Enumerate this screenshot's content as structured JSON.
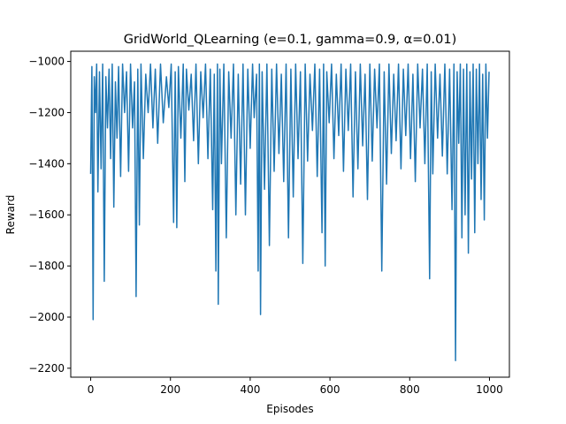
{
  "chart_data": {
    "type": "line",
    "title": "GridWorld_QLearning (e=0.1, gamma=0.9, α=0.01)",
    "xlabel": "Episodes",
    "ylabel": "Reward",
    "xlim": [
      -50,
      1050
    ],
    "ylim": [
      -2235,
      -960
    ],
    "xticks": [
      0,
      200,
      400,
      600,
      800,
      1000
    ],
    "yticks": [
      -2200,
      -2000,
      -1800,
      -1600,
      -1400,
      -1200,
      -1000
    ],
    "grid": false,
    "legend": "none",
    "colors": {
      "series": "#1f77b4",
      "axes": "#000000",
      "background": "#ffffff"
    },
    "series": [
      {
        "points": [
          [
            0,
            -1440
          ],
          [
            3,
            -1020
          ],
          [
            6,
            -2010
          ],
          [
            9,
            -1060
          ],
          [
            12,
            -1200
          ],
          [
            15,
            -1010
          ],
          [
            18,
            -1510
          ],
          [
            22,
            -1040
          ],
          [
            26,
            -1420
          ],
          [
            30,
            -1010
          ],
          [
            34,
            -1860
          ],
          [
            38,
            -1060
          ],
          [
            42,
            -1260
          ],
          [
            46,
            -1030
          ],
          [
            50,
            -1380
          ],
          [
            54,
            -1010
          ],
          [
            58,
            -1570
          ],
          [
            62,
            -1080
          ],
          [
            66,
            -1300
          ],
          [
            70,
            -1020
          ],
          [
            75,
            -1450
          ],
          [
            80,
            -1010
          ],
          [
            85,
            -1200
          ],
          [
            90,
            -1040
          ],
          [
            95,
            -1430
          ],
          [
            100,
            -1010
          ],
          [
            105,
            -1260
          ],
          [
            110,
            -1080
          ],
          [
            114,
            -1920
          ],
          [
            118,
            -1030
          ],
          [
            122,
            -1640
          ],
          [
            126,
            -1010
          ],
          [
            132,
            -1380
          ],
          [
            138,
            -1050
          ],
          [
            144,
            -1200
          ],
          [
            150,
            -1010
          ],
          [
            156,
            -1260
          ],
          [
            162,
            -1030
          ],
          [
            168,
            -1320
          ],
          [
            175,
            -1010
          ],
          [
            182,
            -1240
          ],
          [
            190,
            -1060
          ],
          [
            196,
            -1180
          ],
          [
            202,
            -1010
          ],
          [
            208,
            -1630
          ],
          [
            212,
            -1040
          ],
          [
            216,
            -1650
          ],
          [
            220,
            -1020
          ],
          [
            226,
            -1300
          ],
          [
            232,
            -1010
          ],
          [
            236,
            -1470
          ],
          [
            240,
            -1030
          ],
          [
            246,
            -1190
          ],
          [
            252,
            -1050
          ],
          [
            258,
            -1310
          ],
          [
            264,
            -1010
          ],
          [
            270,
            -1400
          ],
          [
            276,
            -1040
          ],
          [
            282,
            -1220
          ],
          [
            288,
            -1010
          ],
          [
            294,
            -1380
          ],
          [
            300,
            -1030
          ],
          [
            306,
            -1580
          ],
          [
            310,
            -1050
          ],
          [
            314,
            -1820
          ],
          [
            318,
            -1010
          ],
          [
            320,
            -1950
          ],
          [
            324,
            -1030
          ],
          [
            328,
            -1400
          ],
          [
            334,
            -1010
          ],
          [
            340,
            -1690
          ],
          [
            346,
            -1040
          ],
          [
            352,
            -1300
          ],
          [
            358,
            -1010
          ],
          [
            364,
            -1600
          ],
          [
            370,
            -1050
          ],
          [
            376,
            -1480
          ],
          [
            382,
            -1010
          ],
          [
            388,
            -1600
          ],
          [
            394,
            -1030
          ],
          [
            400,
            -1340
          ],
          [
            406,
            -1010
          ],
          [
            410,
            -1220
          ],
          [
            416,
            -1050
          ],
          [
            420,
            -1820
          ],
          [
            423,
            -1010
          ],
          [
            426,
            -1990
          ],
          [
            430,
            -1040
          ],
          [
            436,
            -1500
          ],
          [
            442,
            -1010
          ],
          [
            448,
            -1720
          ],
          [
            454,
            -1030
          ],
          [
            460,
            -1430
          ],
          [
            466,
            -1010
          ],
          [
            472,
            -1360
          ],
          [
            478,
            -1050
          ],
          [
            484,
            -1470
          ],
          [
            490,
            -1010
          ],
          [
            496,
            -1690
          ],
          [
            502,
            -1030
          ],
          [
            508,
            -1530
          ],
          [
            514,
            -1010
          ],
          [
            520,
            -1380
          ],
          [
            526,
            -1040
          ],
          [
            532,
            -1790
          ],
          [
            538,
            -1010
          ],
          [
            544,
            -1390
          ],
          [
            550,
            -1050
          ],
          [
            556,
            -1270
          ],
          [
            562,
            -1010
          ],
          [
            568,
            -1450
          ],
          [
            574,
            -1030
          ],
          [
            580,
            -1670
          ],
          [
            584,
            -1010
          ],
          [
            588,
            -1800
          ],
          [
            592,
            -1040
          ],
          [
            598,
            -1240
          ],
          [
            604,
            -1010
          ],
          [
            610,
            -1380
          ],
          [
            616,
            -1050
          ],
          [
            622,
            -1290
          ],
          [
            628,
            -1010
          ],
          [
            634,
            -1430
          ],
          [
            640,
            -1030
          ],
          [
            646,
            -1270
          ],
          [
            652,
            -1010
          ],
          [
            658,
            -1530
          ],
          [
            664,
            -1040
          ],
          [
            670,
            -1420
          ],
          [
            676,
            -1010
          ],
          [
            682,
            -1330
          ],
          [
            688,
            -1050
          ],
          [
            694,
            -1540
          ],
          [
            700,
            -1010
          ],
          [
            706,
            -1390
          ],
          [
            712,
            -1030
          ],
          [
            718,
            -1260
          ],
          [
            724,
            -1010
          ],
          [
            730,
            -1820
          ],
          [
            736,
            -1040
          ],
          [
            742,
            -1480
          ],
          [
            748,
            -1010
          ],
          [
            754,
            -1360
          ],
          [
            760,
            -1050
          ],
          [
            766,
            -1310
          ],
          [
            772,
            -1010
          ],
          [
            778,
            -1420
          ],
          [
            784,
            -1030
          ],
          [
            790,
            -1290
          ],
          [
            796,
            -1010
          ],
          [
            802,
            -1380
          ],
          [
            808,
            -1050
          ],
          [
            814,
            -1470
          ],
          [
            820,
            -1010
          ],
          [
            826,
            -1260
          ],
          [
            832,
            -1030
          ],
          [
            838,
            -1400
          ],
          [
            844,
            -1010
          ],
          [
            850,
            -1850
          ],
          [
            854,
            -1040
          ],
          [
            858,
            -1440
          ],
          [
            864,
            -1010
          ],
          [
            870,
            -1300
          ],
          [
            876,
            -1050
          ],
          [
            882,
            -1370
          ],
          [
            888,
            -1010
          ],
          [
            894,
            -1440
          ],
          [
            900,
            -1030
          ],
          [
            906,
            -1580
          ],
          [
            911,
            -1010
          ],
          [
            915,
            -2170
          ],
          [
            919,
            -1040
          ],
          [
            923,
            -1320
          ],
          [
            927,
            -1010
          ],
          [
            931,
            -1690
          ],
          [
            935,
            -1030
          ],
          [
            939,
            -1600
          ],
          [
            943,
            -1010
          ],
          [
            947,
            -1750
          ],
          [
            951,
            -1040
          ],
          [
            955,
            -1460
          ],
          [
            959,
            -1010
          ],
          [
            963,
            -1670
          ],
          [
            967,
            -1030
          ],
          [
            971,
            -1400
          ],
          [
            975,
            -1010
          ],
          [
            979,
            -1540
          ],
          [
            983,
            -1050
          ],
          [
            987,
            -1620
          ],
          [
            991,
            -1010
          ],
          [
            995,
            -1300
          ],
          [
            999,
            -1040
          ]
        ]
      }
    ]
  }
}
